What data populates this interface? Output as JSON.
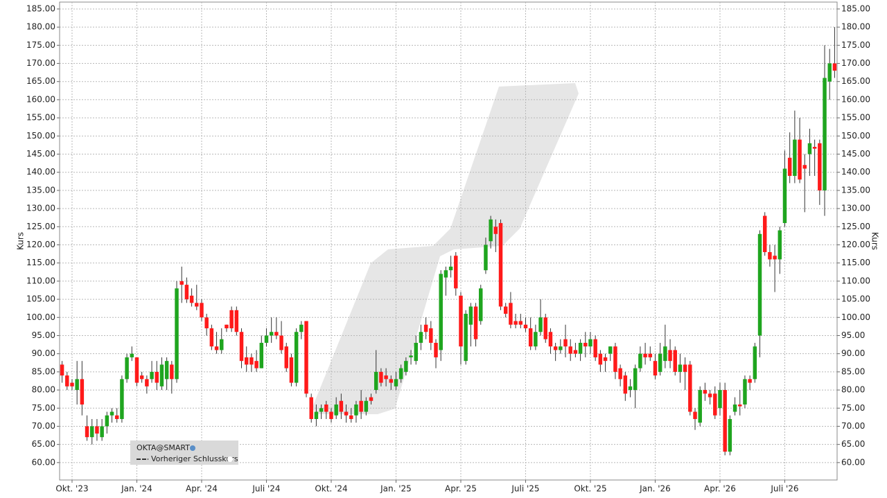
{
  "chart_data": {
    "type": "candlestick",
    "y_label": "Kurs",
    "legend": {
      "position": "lower left",
      "title": "OKTA@SMART",
      "items": [
        "Vorheriger Schlusskurs"
      ]
    },
    "up_color": "#1fa51f",
    "down_color": "#ff1a1a",
    "grid": true,
    "ylim": [
      55.2,
      186.9
    ],
    "yticks": [
      {
        "value": 60,
        "label": "60.00"
      },
      {
        "value": 65,
        "label": "65.00"
      },
      {
        "value": 70,
        "label": "70.00"
      },
      {
        "value": 75,
        "label": "75.00"
      },
      {
        "value": 80,
        "label": "80.00"
      },
      {
        "value": 85,
        "label": "85.00"
      },
      {
        "value": 90,
        "label": "90.00"
      },
      {
        "value": 95,
        "label": "95.00"
      },
      {
        "value": 100,
        "label": "100.00"
      },
      {
        "value": 105,
        "label": "105.00"
      },
      {
        "value": 110,
        "label": "110.00"
      },
      {
        "value": 115,
        "label": "115.00"
      },
      {
        "value": 120,
        "label": "120.00"
      },
      {
        "value": 125,
        "label": "125.00"
      },
      {
        "value": 130,
        "label": "130.00"
      },
      {
        "value": 135,
        "label": "135.00"
      },
      {
        "value": 140,
        "label": "140.00"
      },
      {
        "value": 145,
        "label": "145.00"
      },
      {
        "value": 150,
        "label": "150.00"
      },
      {
        "value": 155,
        "label": "155.00"
      },
      {
        "value": 160,
        "label": "160.00"
      },
      {
        "value": 165,
        "label": "165.00"
      },
      {
        "value": 170,
        "label": "170.00"
      },
      {
        "value": 175,
        "label": "175.00"
      },
      {
        "value": 180,
        "label": "180.00"
      },
      {
        "value": 185,
        "label": "185.00"
      }
    ],
    "categories": [
      null,
      null,
      "Okt. '23",
      null,
      null,
      null,
      null,
      null,
      null,
      null,
      null,
      null,
      null,
      null,
      null,
      "Jan. '24",
      null,
      null,
      null,
      null,
      null,
      null,
      null,
      null,
      null,
      null,
      null,
      null,
      "Apr. '24",
      null,
      null,
      null,
      null,
      null,
      null,
      null,
      null,
      null,
      null,
      null,
      null,
      "Juli '24",
      null,
      null,
      null,
      null,
      null,
      null,
      null,
      null,
      null,
      null,
      null,
      null,
      "Okt. '24",
      null,
      null,
      null,
      null,
      null,
      null,
      null,
      null,
      null,
      null,
      null,
      null,
      "Jan. '25",
      null,
      null,
      null,
      null,
      null,
      null,
      null,
      null,
      null,
      null,
      null,
      null,
      "Apr. '25",
      null,
      null,
      null,
      null,
      null,
      null,
      null,
      null,
      null,
      null,
      null,
      null,
      "Juli '25",
      null,
      null,
      null,
      null,
      null,
      null,
      null,
      null,
      null,
      null,
      null,
      null,
      "Okt. '25",
      null,
      null,
      null,
      null,
      null,
      null,
      null,
      null,
      null,
      null,
      null,
      null,
      "Jan. '26",
      null,
      null,
      null,
      null,
      null,
      null,
      null,
      null,
      null,
      null,
      null,
      null,
      "Apr. '26",
      null,
      null,
      null,
      null,
      null,
      null,
      null,
      null,
      null,
      null,
      null,
      null,
      "Juli '26",
      null,
      null,
      null,
      null,
      null,
      null,
      null,
      null,
      null,
      null
    ],
    "open": [
      87,
      84,
      82,
      80,
      83,
      70,
      67,
      70,
      67,
      70,
      73,
      73,
      72,
      83,
      89,
      89,
      84,
      83,
      83,
      85,
      81,
      83,
      87,
      83,
      110,
      109,
      106,
      104,
      104,
      100,
      97,
      92,
      91,
      98,
      102,
      102,
      96,
      89,
      89,
      88,
      86,
      93,
      95,
      96,
      95,
      92,
      89,
      82,
      96,
      99,
      78,
      72,
      74,
      76,
      74,
      73,
      77,
      74,
      73,
      73,
      77,
      74,
      78,
      80,
      85,
      84,
      83,
      81,
      83,
      85,
      89,
      88,
      93,
      98,
      97,
      93,
      91,
      111,
      113,
      117,
      106,
      88,
      98,
      103,
      99,
      113,
      121,
      125,
      126,
      103,
      104,
      99,
      99,
      98,
      97,
      92,
      96,
      100,
      96,
      92,
      91,
      94,
      92,
      91,
      90,
      93,
      92,
      94,
      90,
      89,
      90,
      92,
      86,
      84,
      80,
      80,
      86,
      90,
      90,
      88,
      85,
      88,
      91,
      91,
      85,
      87,
      87,
      74,
      71,
      80,
      79,
      79,
      75,
      80,
      63,
      74,
      76,
      76,
      83,
      83,
      95,
      128,
      118,
      117,
      116,
      126,
      144,
      139,
      149,
      142,
      145,
      147,
      148,
      135,
      165,
      170
    ],
    "high": [
      88,
      85,
      83,
      88,
      88,
      73,
      72,
      72,
      72,
      74,
      75,
      75,
      84,
      90,
      92,
      89,
      85,
      84,
      88,
      88,
      89,
      89,
      88,
      110,
      114,
      111,
      108,
      109,
      105,
      101,
      98,
      96,
      97,
      98,
      103,
      103,
      97,
      92,
      90,
      91,
      95,
      97,
      100,
      100,
      99,
      93,
      90,
      97,
      99,
      99,
      79,
      76,
      76,
      77,
      75,
      78,
      79,
      76,
      75,
      77,
      80,
      78,
      79,
      91,
      86,
      86,
      84,
      85,
      87,
      89,
      91,
      95,
      98,
      100,
      99,
      94,
      113,
      114,
      117,
      118,
      107,
      102,
      104,
      104,
      109,
      122,
      128,
      127,
      127,
      104,
      107,
      101,
      101,
      100,
      100,
      98,
      105,
      101,
      97,
      93,
      94,
      98,
      94,
      93,
      94,
      96,
      96,
      95,
      91,
      90,
      92,
      93,
      87,
      85,
      83,
      87,
      92,
      93,
      92,
      90,
      93,
      98,
      94,
      92,
      90,
      89,
      88,
      75,
      81,
      82,
      80,
      81,
      82,
      82,
      73,
      78,
      80,
      84,
      84,
      93,
      124,
      129,
      120,
      120,
      125,
      146,
      151,
      157,
      155,
      145,
      152,
      149,
      149,
      175,
      174,
      180
    ],
    "low": [
      82,
      80,
      80,
      76,
      73,
      66,
      65,
      66,
      66,
      68,
      71,
      71,
      71,
      82,
      88,
      81,
      82,
      79,
      82,
      80,
      80,
      80,
      79,
      82,
      104,
      104,
      103,
      102,
      99,
      95,
      91,
      90,
      90,
      96,
      96,
      95,
      86,
      85,
      85,
      85,
      86,
      92,
      93,
      94,
      90,
      85,
      81,
      81,
      94,
      78,
      71,
      70,
      72,
      72,
      71,
      72,
      72,
      71,
      71,
      71,
      72,
      73,
      76,
      79,
      81,
      81,
      80,
      80,
      82,
      84,
      87,
      87,
      91,
      94,
      91,
      86,
      88,
      106,
      111,
      106,
      87,
      87,
      92,
      92,
      98,
      112,
      119,
      118,
      102,
      100,
      97,
      97,
      97,
      96,
      91,
      91,
      95,
      93,
      90,
      88,
      90,
      89,
      88,
      89,
      88,
      89,
      90,
      88,
      85,
      85,
      88,
      83,
      81,
      77,
      78,
      75,
      85,
      87,
      88,
      83,
      84,
      86,
      86,
      84,
      82,
      80,
      73,
      69,
      70,
      77,
      76,
      72,
      73,
      62,
      62,
      73,
      73,
      75,
      80,
      82,
      89,
      117,
      114,
      107,
      112,
      125,
      137,
      137,
      137,
      129,
      139,
      139,
      131,
      128,
      160,
      166
    ],
    "close": [
      84,
      81,
      81,
      83,
      76,
      67,
      70,
      68,
      70,
      73,
      74,
      72,
      83,
      89,
      90,
      82,
      83,
      81,
      85,
      82,
      87,
      88,
      83,
      108,
      109,
      105,
      104,
      103,
      100,
      97,
      92,
      91,
      94,
      97,
      97,
      96,
      88,
      87,
      87,
      86,
      93,
      95,
      96,
      95,
      91,
      86,
      82,
      96,
      98,
      79,
      72,
      74,
      75,
      74,
      72,
      76,
      74,
      73,
      72,
      76,
      74,
      77,
      77,
      85,
      82,
      83,
      82,
      83,
      86,
      88,
      89.5,
      93,
      96,
      96,
      93,
      89,
      112,
      113,
      114,
      108,
      92,
      101,
      103,
      94,
      108,
      120,
      127,
      123,
      103,
      101,
      98,
      98,
      98,
      97,
      92,
      96,
      100,
      94,
      92,
      91,
      92,
      92,
      90,
      90,
      93,
      92,
      94,
      89,
      87,
      88,
      92,
      85,
      83,
      79,
      81,
      86,
      90,
      89,
      89,
      84,
      90,
      92,
      88,
      85,
      87,
      85,
      74,
      72,
      80,
      79,
      78,
      73,
      80,
      63,
      72,
      76,
      75.5,
      83,
      82,
      92,
      123,
      118,
      116,
      116,
      124,
      141,
      139,
      149,
      138,
      141,
      148,
      146.5,
      135,
      166,
      170,
      168
    ]
  }
}
